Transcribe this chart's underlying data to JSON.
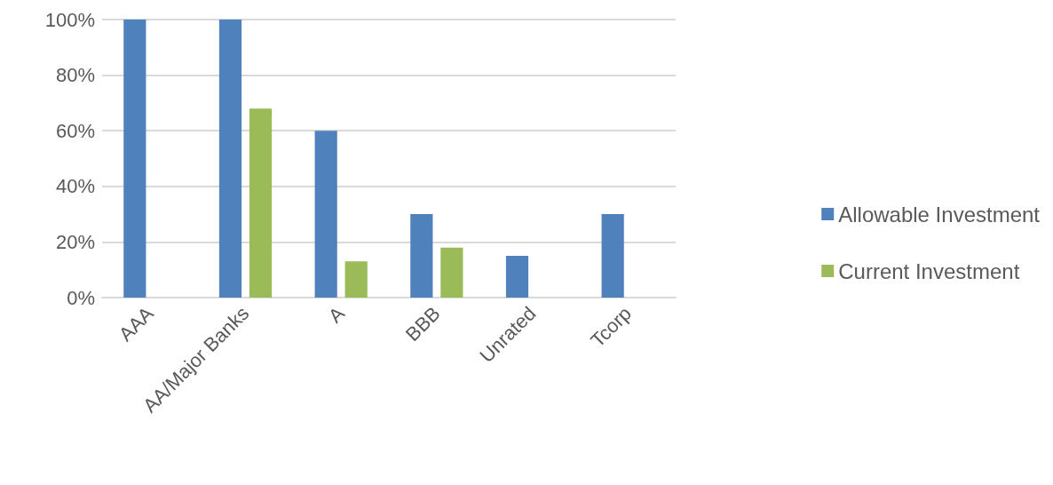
{
  "chart_data": {
    "type": "bar",
    "categories": [
      "AAA",
      "AA/Major Banks",
      "A",
      "BBB",
      "Unrated",
      "Tcorp"
    ],
    "series": [
      {
        "name": "Allowable Investment",
        "color": "#4f81bd",
        "values": [
          100,
          100,
          60,
          30,
          15,
          30
        ]
      },
      {
        "name": "Current Investment",
        "color": "#9bbb59",
        "values": [
          null,
          68,
          13,
          18,
          null,
          null
        ]
      }
    ],
    "ylim": [
      0,
      100
    ],
    "yticks": [
      {
        "value": 0,
        "label": "0%"
      },
      {
        "value": 20,
        "label": "20%"
      },
      {
        "value": 40,
        "label": "40%"
      },
      {
        "value": 60,
        "label": "60%"
      },
      {
        "value": 80,
        "label": "80%"
      },
      {
        "value": 100,
        "label": "100%"
      }
    ],
    "grid": "y",
    "legend": "right"
  }
}
